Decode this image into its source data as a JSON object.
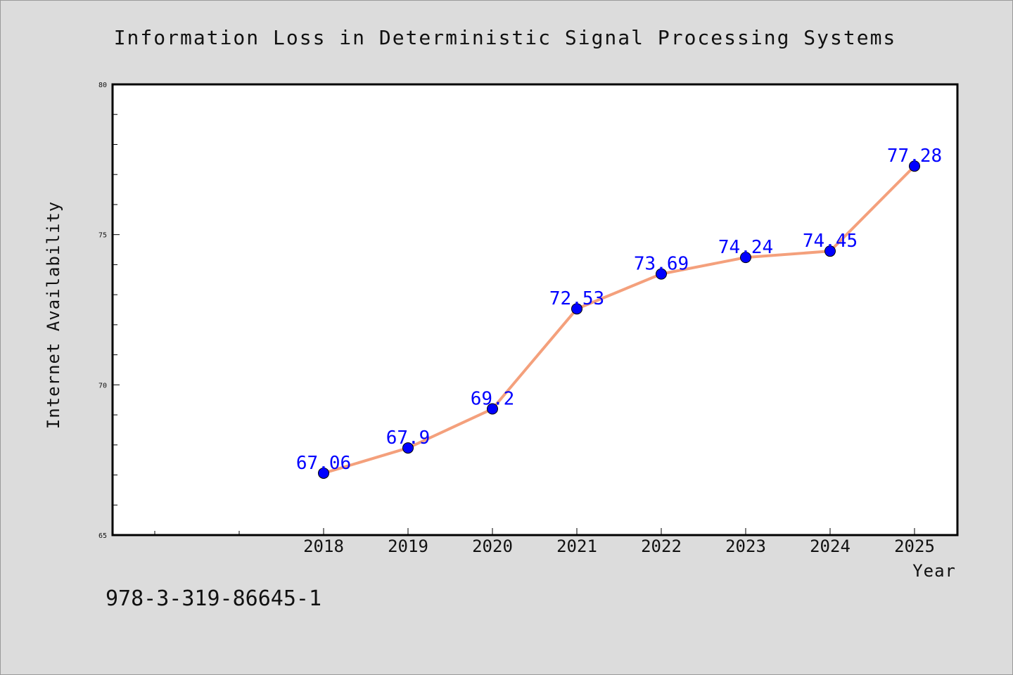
{
  "chart_data": {
    "type": "line",
    "title": "Information Loss in Deterministic Signal Processing Systems",
    "xlabel": "Year",
    "ylabel": "Internet Availability",
    "x": [
      "2018",
      "2019",
      "2020",
      "2021",
      "2022",
      "2023",
      "2024",
      "2025"
    ],
    "series": [
      {
        "values": [
          67.06,
          67.9,
          69.2,
          72.53,
          73.69,
          74.24,
          74.45,
          77.28
        ]
      }
    ],
    "data_labels": [
      "67.06",
      "67.9",
      "69.2",
      "72.53",
      "73.69",
      "74.24",
      "74.45",
      "77.28"
    ],
    "ylim": [
      65,
      80
    ],
    "yticks": [
      "65",
      "70",
      "75",
      "80"
    ],
    "grid": false,
    "legend": "none",
    "line_color": "#f4a07c",
    "marker_color": "#0000ff",
    "label_color": "#0000ff"
  },
  "footer": {
    "isbn": "978-3-319-86645-1"
  },
  "colors": {
    "background": "#dcdcdc",
    "plot_background": "#ffffff"
  }
}
